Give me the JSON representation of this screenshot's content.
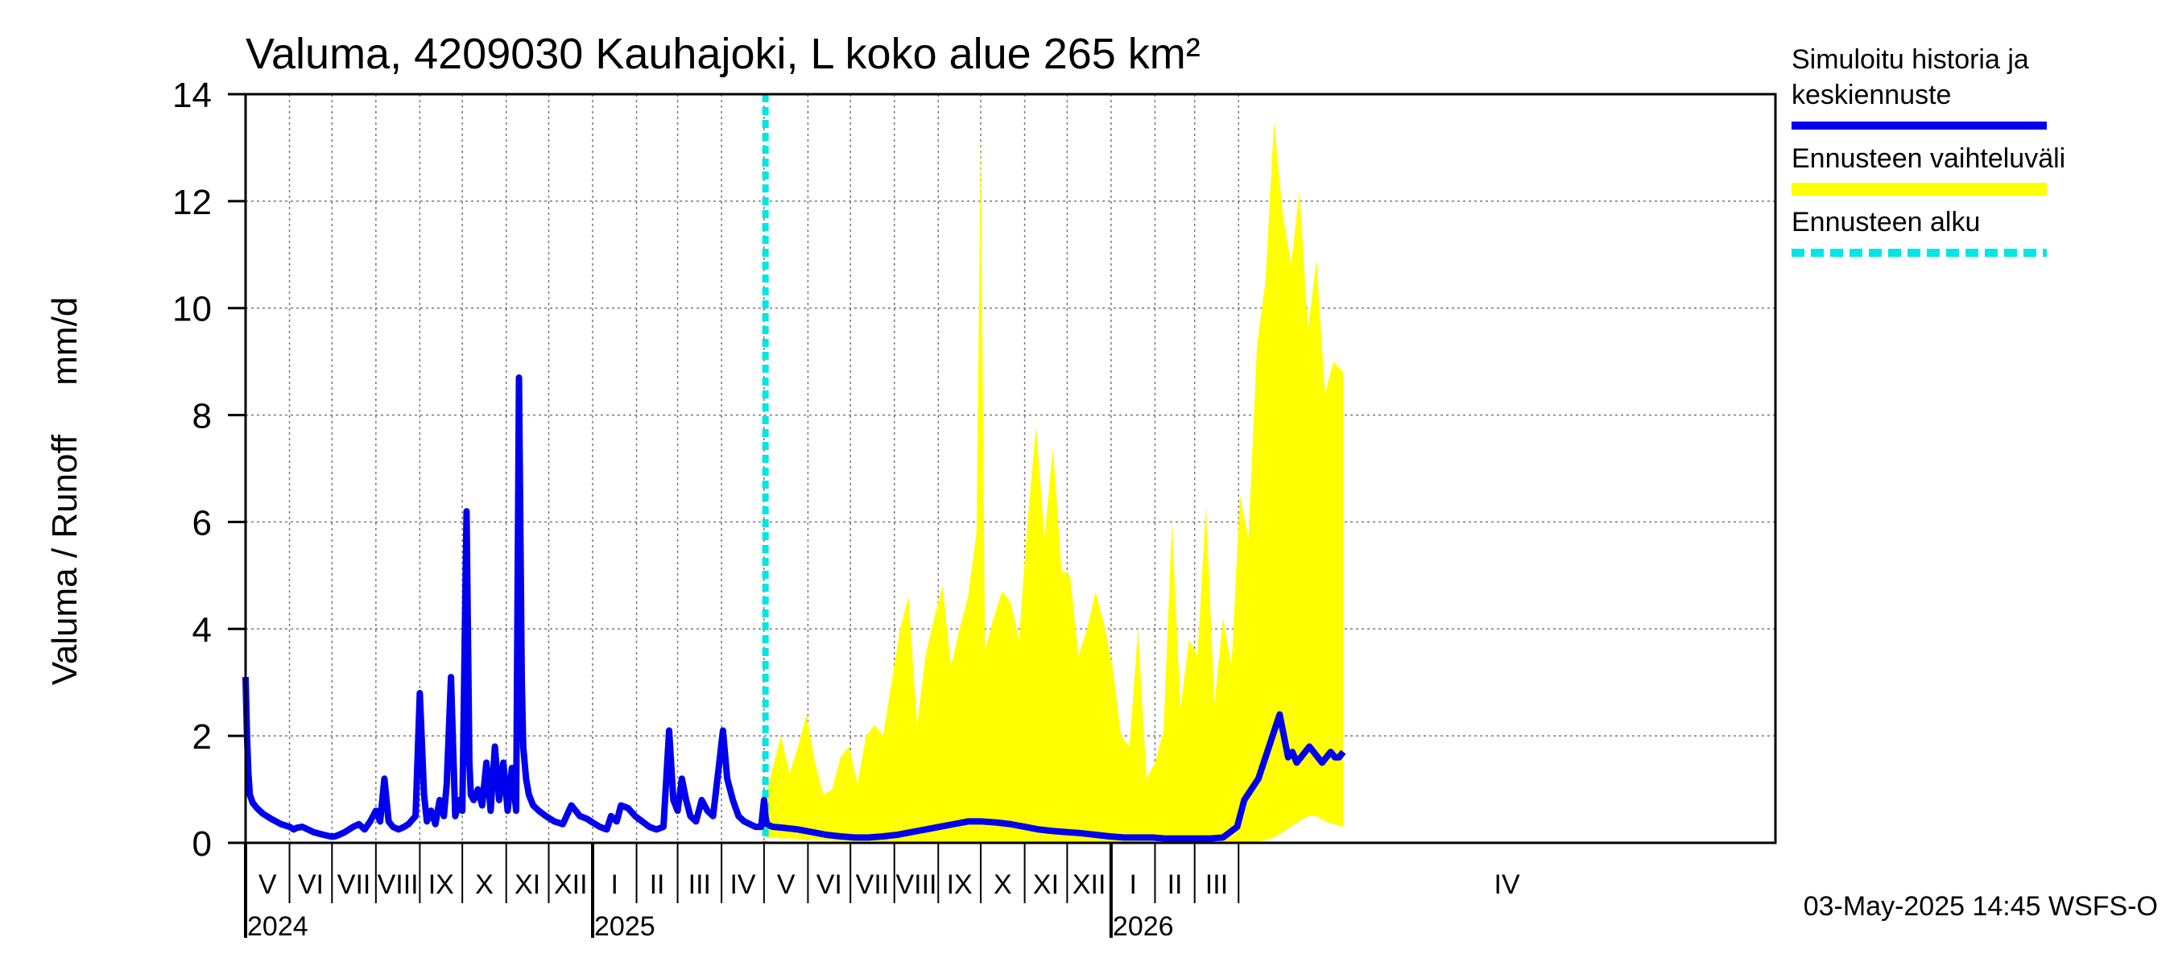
{
  "chart_data": {
    "type": "area",
    "title": "Valuma, 4209030 Kauhajoki, L koko alue 265 km²",
    "ylabel": "Valuma / Runoff     mm/d",
    "xlabel": "",
    "ylim": [
      0,
      14
    ],
    "yticks": [
      0,
      2,
      4,
      6,
      8,
      10,
      12,
      14
    ],
    "x_range_days": [
      0,
      1080
    ],
    "months": [
      {
        "label": "V",
        "start_day": 0
      },
      {
        "label": "VI",
        "start_day": 31
      },
      {
        "label": "VII",
        "start_day": 61
      },
      {
        "label": "VIII",
        "start_day": 92
      },
      {
        "label": "IX",
        "start_day": 123
      },
      {
        "label": "X",
        "start_day": 153
      },
      {
        "label": "XI",
        "start_day": 184
      },
      {
        "label": "XII",
        "start_day": 214
      },
      {
        "label": "I",
        "start_day": 245
      },
      {
        "label": "II",
        "start_day": 276
      },
      {
        "label": "III",
        "start_day": 305
      },
      {
        "label": "IV",
        "start_day": 336
      },
      {
        "label": "V",
        "start_day": 366
      },
      {
        "label": "VI",
        "start_day": 397
      },
      {
        "label": "VII",
        "start_day": 427
      },
      {
        "label": "VIII",
        "start_day": 458
      },
      {
        "label": "IX",
        "start_day": 489
      },
      {
        "label": "X",
        "start_day": 519
      },
      {
        "label": "XI",
        "start_day": 550
      },
      {
        "label": "XII",
        "start_day": 580
      },
      {
        "label": "I",
        "start_day": 611
      },
      {
        "label": "II",
        "start_day": 642
      },
      {
        "label": "III",
        "start_day": 670
      },
      {
        "label": "IV",
        "start_day": 701
      }
    ],
    "years": [
      {
        "label": "2024",
        "start_day": 0
      },
      {
        "label": "2025",
        "start_day": 245
      },
      {
        "label": "2026",
        "start_day": 611
      }
    ],
    "forecast_start_day": 367,
    "legend": [
      {
        "label": "Simuloitu historia ja\nkeskiennuste",
        "color": "#0000ee",
        "style": "solid"
      },
      {
        "label": "Ennusteen vaihteluväli",
        "color": "#ffff00",
        "style": "solid"
      },
      {
        "label": "Ennusteen alku",
        "color": "#00e5e5",
        "style": "dashed"
      }
    ],
    "series": [
      {
        "name": "Simuloitu historia ja keskiennuste",
        "color": "#0000ee",
        "x": [
          0,
          1,
          2,
          3,
          5,
          8,
          12,
          18,
          25,
          31,
          34,
          36,
          40,
          48,
          55,
          60,
          63,
          66,
          70,
          73,
          76,
          80,
          84,
          88,
          92,
          95,
          98,
          101,
          104,
          108,
          112,
          115,
          120,
          123,
          126,
          128,
          131,
          134,
          137,
          140,
          142,
          145,
          148,
          151,
          153,
          156,
          158,
          159,
          161,
          164,
          167,
          170,
          173,
          176,
          179,
          182,
          185,
          188,
          191,
          193,
          195,
          196,
          198,
          200,
          203,
          207,
          212,
          218,
          224,
          230,
          236,
          241,
          245,
          250,
          255,
          258,
          262,
          265,
          270,
          275,
          280,
          285,
          290,
          295,
          299,
          302,
          305,
          308,
          311,
          314,
          318,
          322,
          326,
          330,
          334,
          337,
          340,
          344,
          348,
          352,
          356,
          360,
          364,
          366,
          367,
          368,
          372,
          380,
          390,
          400,
          410,
          420,
          430,
          440,
          450,
          460,
          470,
          480,
          490,
          500,
          510,
          520,
          530,
          540,
          550,
          560,
          570,
          580,
          590,
          600,
          610,
          620,
          630,
          640,
          650,
          660,
          670,
          680,
          690,
          700,
          705,
          710,
          715,
          720,
          725,
          730,
          733,
          736,
          739,
          742,
          745,
          748,
          751,
          754,
          757,
          760,
          763,
          766,
          769,
          772,
          775
        ],
        "values": [
          3.1,
          2.0,
          1.3,
          0.9,
          0.75,
          0.65,
          0.55,
          0.45,
          0.35,
          0.3,
          0.25,
          0.28,
          0.3,
          0.2,
          0.15,
          0.12,
          0.12,
          0.15,
          0.2,
          0.25,
          0.3,
          0.35,
          0.25,
          0.4,
          0.6,
          0.4,
          1.2,
          0.4,
          0.3,
          0.25,
          0.3,
          0.35,
          0.5,
          2.8,
          0.9,
          0.4,
          0.6,
          0.35,
          0.8,
          0.5,
          1.1,
          3.1,
          0.5,
          0.8,
          0.6,
          6.2,
          1.5,
          0.9,
          0.8,
          1.0,
          0.7,
          1.5,
          0.6,
          1.8,
          0.8,
          1.5,
          0.6,
          1.4,
          0.6,
          8.7,
          3.0,
          1.8,
          1.2,
          0.9,
          0.7,
          0.6,
          0.5,
          0.4,
          0.35,
          0.7,
          0.5,
          0.45,
          0.38,
          0.3,
          0.25,
          0.5,
          0.4,
          0.7,
          0.65,
          0.5,
          0.4,
          0.3,
          0.25,
          0.3,
          2.1,
          0.8,
          0.6,
          1.2,
          0.8,
          0.5,
          0.4,
          0.8,
          0.6,
          0.5,
          1.4,
          2.1,
          1.2,
          0.8,
          0.5,
          0.4,
          0.35,
          0.3,
          0.3,
          0.8,
          0.5,
          0.35,
          0.3,
          0.28,
          0.25,
          0.2,
          0.15,
          0.12,
          0.1,
          0.1,
          0.12,
          0.15,
          0.2,
          0.25,
          0.3,
          0.35,
          0.4,
          0.4,
          0.38,
          0.35,
          0.3,
          0.25,
          0.22,
          0.2,
          0.18,
          0.15,
          0.12,
          0.1,
          0.1,
          0.1,
          0.08,
          0.08,
          0.08,
          0.08,
          0.1,
          0.3,
          0.8,
          1.0,
          1.2,
          1.6,
          2.0,
          2.4,
          2.0,
          1.6,
          1.7,
          1.5,
          1.6,
          1.7,
          1.8,
          1.7,
          1.6,
          1.5,
          1.6,
          1.7,
          1.6,
          1.6,
          1.7
        ]
      },
      {
        "name": "Ennusteen vaihteluväli",
        "color": "#ffff00",
        "x": [
          367,
          372,
          378,
          384,
          390,
          396,
          402,
          408,
          414,
          420,
          426,
          432,
          438,
          444,
          450,
          456,
          462,
          468,
          474,
          480,
          486,
          492,
          498,
          504,
          510,
          516,
          519,
          522,
          528,
          534,
          540,
          546,
          552,
          558,
          564,
          570,
          576,
          582,
          588,
          594,
          600,
          606,
          612,
          618,
          624,
          630,
          636,
          642,
          648,
          654,
          660,
          666,
          672,
          678,
          684,
          690,
          696,
          702,
          708,
          714,
          720,
          726,
          732,
          738,
          744,
          750,
          756,
          762,
          768,
          775
        ],
        "upper": [
          0.8,
          1.4,
          2.0,
          1.3,
          1.8,
          2.4,
          1.5,
          0.9,
          1.0,
          1.6,
          1.8,
          1.1,
          2.0,
          2.2,
          2.0,
          3.0,
          4.0,
          4.6,
          2.2,
          3.5,
          4.2,
          4.8,
          3.3,
          4.0,
          4.6,
          5.8,
          13.2,
          3.6,
          4.2,
          4.7,
          4.5,
          3.8,
          6.0,
          7.8,
          5.7,
          7.4,
          5.1,
          5.0,
          3.5,
          4.0,
          4.7,
          4.1,
          3.3,
          2.0,
          1.8,
          4.0,
          1.2,
          1.5,
          2.1,
          6.0,
          2.5,
          3.8,
          3.5,
          6.3,
          2.6,
          4.2,
          3.3,
          6.5,
          5.7,
          9.3,
          10.5,
          13.5,
          11.8,
          10.8,
          12.2,
          9.6,
          10.9,
          8.4,
          9.0,
          8.8
        ],
        "lower": [
          0.1,
          0.1,
          0.08,
          0.08,
          0.07,
          0.06,
          0.05,
          0.05,
          0.04,
          0.04,
          0.03,
          0.03,
          0.03,
          0.03,
          0.02,
          0.02,
          0.02,
          0.02,
          0.02,
          0.02,
          0.02,
          0.02,
          0.02,
          0.02,
          0.02,
          0.02,
          0.02,
          0.02,
          0.02,
          0.02,
          0.02,
          0.02,
          0.02,
          0.02,
          0.02,
          0.02,
          0.02,
          0.02,
          0.02,
          0.02,
          0.02,
          0.02,
          0.02,
          0.02,
          0.02,
          0.02,
          0.02,
          0.02,
          0.02,
          0.02,
          0.02,
          0.02,
          0.02,
          0.02,
          0.02,
          0.02,
          0.02,
          0.02,
          0.02,
          0.02,
          0.05,
          0.1,
          0.2,
          0.3,
          0.4,
          0.5,
          0.5,
          0.4,
          0.35,
          0.3
        ]
      }
    ]
  },
  "footer_text": "03-May-2025 14:45 WSFS-O"
}
